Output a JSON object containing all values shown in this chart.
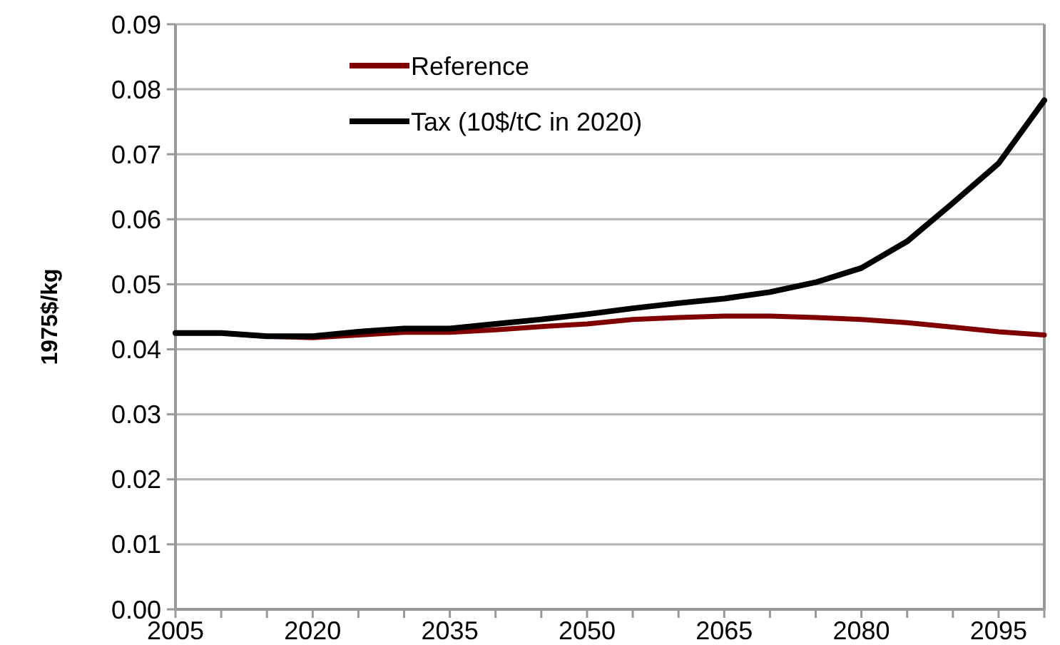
{
  "chart_data": {
    "type": "line",
    "ylabel": "1975$/kg",
    "x": [
      2005,
      2010,
      2015,
      2020,
      2025,
      2030,
      2035,
      2040,
      2045,
      2050,
      2055,
      2060,
      2065,
      2070,
      2075,
      2080,
      2085,
      2090,
      2095,
      2100
    ],
    "series": [
      {
        "name": "Reference",
        "color": "#800000",
        "values": [
          0.0425,
          0.0425,
          0.042,
          0.0418,
          0.0422,
          0.0426,
          0.0426,
          0.043,
          0.0435,
          0.0439,
          0.0446,
          0.0449,
          0.0451,
          0.0451,
          0.0449,
          0.0446,
          0.0441,
          0.0434,
          0.0427,
          0.0422
        ]
      },
      {
        "name": "Tax (10$/tC in 2020)",
        "color": "#000000",
        "values": [
          0.0425,
          0.0425,
          0.042,
          0.042,
          0.0427,
          0.0432,
          0.0432,
          0.0439,
          0.0446,
          0.0454,
          0.0463,
          0.0471,
          0.0478,
          0.0488,
          0.0503,
          0.0525,
          0.0566,
          0.0625,
          0.0686,
          0.0783
        ]
      }
    ],
    "xlim": [
      2005,
      2100
    ],
    "xticks": [
      2005,
      {
        "value": 2010,
        "label": null
      },
      {
        "value": 2015,
        "label": null
      },
      2020,
      {
        "value": 2025,
        "label": null
      },
      {
        "value": 2030,
        "label": null
      },
      2035,
      {
        "value": 2040,
        "label": null
      },
      {
        "value": 2045,
        "label": null
      },
      2050,
      {
        "value": 2055,
        "label": null
      },
      {
        "value": 2060,
        "label": null
      },
      2065,
      {
        "value": 2070,
        "label": null
      },
      {
        "value": 2075,
        "label": null
      },
      2080,
      {
        "value": 2085,
        "label": null
      },
      {
        "value": 2090,
        "label": null
      },
      2095,
      {
        "value": 2100,
        "label": null
      }
    ],
    "ylim": [
      0,
      0.09
    ],
    "yticks": [
      {
        "value": 0,
        "label": "0.00"
      },
      {
        "value": 0.01,
        "label": "0.01"
      },
      {
        "value": 0.02,
        "label": "0.02"
      },
      {
        "value": 0.03,
        "label": "0.03"
      },
      {
        "value": 0.04,
        "label": "0.04"
      },
      {
        "value": 0.05,
        "label": "0.05"
      },
      {
        "value": 0.06,
        "label": "0.06"
      },
      {
        "value": 0.07,
        "label": "0.07"
      },
      {
        "value": 0.08,
        "label": "0.08"
      },
      {
        "value": 0.09,
        "label": "0.09"
      }
    ],
    "grid": "y",
    "legend": "top",
    "marker": "none",
    "line_style": "solid"
  }
}
